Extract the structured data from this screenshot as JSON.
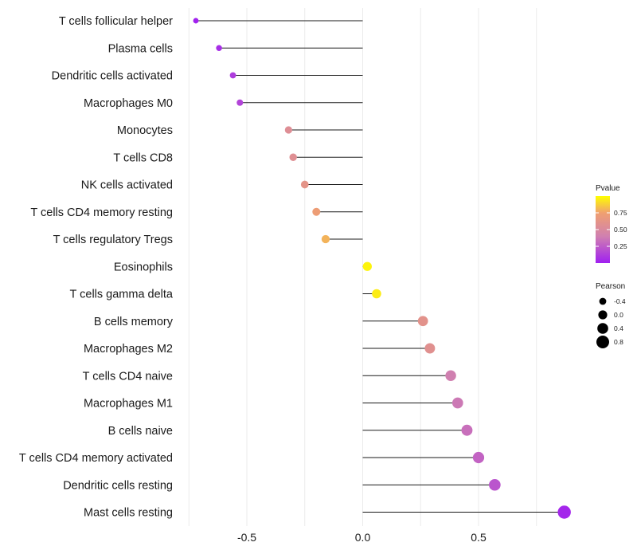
{
  "chart_data": {
    "type": "lollipop",
    "title": "",
    "xlabel": "",
    "ylabel": "",
    "x_ticks": [
      -0.5,
      0.0,
      0.5
    ],
    "x_tick_labels": [
      "-0.5",
      "0.0",
      "0.5"
    ],
    "x_grid_lines": [
      -0.75,
      -0.5,
      -0.25,
      0.0,
      0.25,
      0.5,
      0.75
    ],
    "xlim": [
      -0.8,
      0.9
    ],
    "grid": true,
    "color_scale": {
      "low": "#a020f0",
      "mid": "#d080b0",
      "mid2": "#f0a070",
      "high": "#ffff00"
    },
    "points": [
      {
        "category": "T cells follicular helper",
        "pearson": -0.72,
        "pvalue": 0.01
      },
      {
        "category": "Plasma cells",
        "pearson": -0.62,
        "pvalue": 0.06
      },
      {
        "category": "Dendritic cells activated",
        "pearson": -0.56,
        "pvalue": 0.12
      },
      {
        "category": "Macrophages M0",
        "pearson": -0.53,
        "pvalue": 0.15
      },
      {
        "category": "Monocytes",
        "pearson": -0.32,
        "pvalue": 0.55
      },
      {
        "category": "T cells CD8",
        "pearson": -0.3,
        "pvalue": 0.56
      },
      {
        "category": "NK cells activated",
        "pearson": -0.25,
        "pvalue": 0.62
      },
      {
        "category": "T cells CD4 memory resting",
        "pearson": -0.2,
        "pvalue": 0.72
      },
      {
        "category": "T cells regulatory  Tregs",
        "pearson": -0.16,
        "pvalue": 0.8
      },
      {
        "category": "Eosinophils",
        "pearson": 0.02,
        "pvalue": 0.97
      },
      {
        "category": "T cells gamma delta",
        "pearson": 0.06,
        "pvalue": 0.95
      },
      {
        "category": "B cells memory",
        "pearson": 0.26,
        "pvalue": 0.6
      },
      {
        "category": "Macrophages M2",
        "pearson": 0.29,
        "pvalue": 0.58
      },
      {
        "category": "T cells CD4 naive",
        "pearson": 0.38,
        "pvalue": 0.4
      },
      {
        "category": "Macrophages M1",
        "pearson": 0.41,
        "pvalue": 0.37
      },
      {
        "category": "B cells naive",
        "pearson": 0.45,
        "pvalue": 0.33
      },
      {
        "category": "T cells CD4 memory activated",
        "pearson": 0.5,
        "pvalue": 0.28
      },
      {
        "category": "Dendritic cells resting",
        "pearson": 0.57,
        "pvalue": 0.22
      },
      {
        "category": "Mast cells resting",
        "pearson": 0.87,
        "pvalue": 0.03
      }
    ],
    "legend_pvalue": {
      "title": "Pvalue",
      "ticks": [
        0.75,
        0.5,
        0.25
      ],
      "tick_labels": [
        "0.75",
        "0.50",
        "0.25"
      ],
      "range": [
        0.0,
        1.0
      ]
    },
    "legend_pearson": {
      "title": "Pearson",
      "values": [
        -0.4,
        0.0,
        0.4,
        0.8
      ],
      "labels": [
        "-0.4",
        "0.0",
        "0.4",
        "0.8"
      ]
    }
  }
}
